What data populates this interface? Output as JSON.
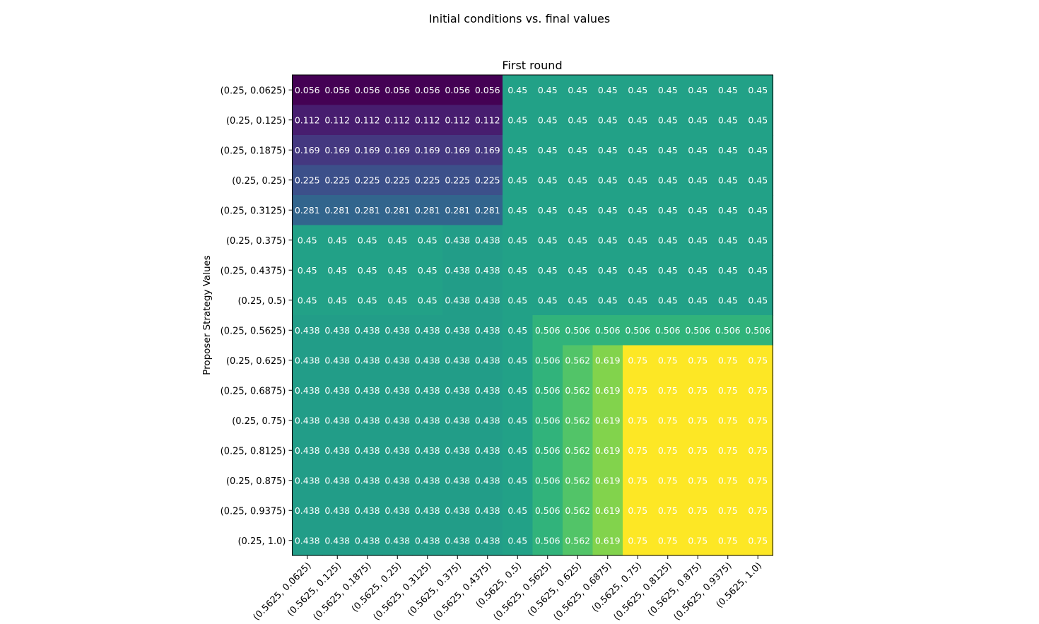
{
  "figure": {
    "suptitle": "Initial conditions vs. final values"
  },
  "chart_data": {
    "type": "heatmap",
    "title": "First round",
    "ylabel": "Proposer Strategy Values",
    "xlabel": "",
    "colormap": "viridis",
    "vmin": 0.056,
    "vmax": 0.75,
    "annotation_color": "#ffffff",
    "y_categories": [
      "(0.25, 0.0625)",
      "(0.25, 0.125)",
      "(0.25, 0.1875)",
      "(0.25, 0.25)",
      "(0.25, 0.3125)",
      "(0.25, 0.375)",
      "(0.25, 0.4375)",
      "(0.25, 0.5)",
      "(0.25, 0.5625)",
      "(0.25, 0.625)",
      "(0.25, 0.6875)",
      "(0.25, 0.75)",
      "(0.25, 0.8125)",
      "(0.25, 0.875)",
      "(0.25, 0.9375)",
      "(0.25, 1.0)"
    ],
    "x_categories": [
      "(0.5625, 0.0625)",
      "(0.5625, 0.125)",
      "(0.5625, 0.1875)",
      "(0.5625, 0.25)",
      "(0.5625, 0.3125)",
      "(0.5625, 0.375)",
      "(0.5625, 0.4375)",
      "(0.5625, 0.5)",
      "(0.5625, 0.5625)",
      "(0.5625, 0.625)",
      "(0.5625, 0.6875)",
      "(0.5625, 0.75)",
      "(0.5625, 0.8125)",
      "(0.5625, 0.875)",
      "(0.5625, 0.9375)",
      "(0.5625, 1.0)"
    ],
    "values": [
      [
        "0.056",
        "0.056",
        "0.056",
        "0.056",
        "0.056",
        "0.056",
        "0.056",
        "0.45",
        "0.45",
        "0.45",
        "0.45",
        "0.45",
        "0.45",
        "0.45",
        "0.45",
        "0.45"
      ],
      [
        "0.112",
        "0.112",
        "0.112",
        "0.112",
        "0.112",
        "0.112",
        "0.112",
        "0.45",
        "0.45",
        "0.45",
        "0.45",
        "0.45",
        "0.45",
        "0.45",
        "0.45",
        "0.45"
      ],
      [
        "0.169",
        "0.169",
        "0.169",
        "0.169",
        "0.169",
        "0.169",
        "0.169",
        "0.45",
        "0.45",
        "0.45",
        "0.45",
        "0.45",
        "0.45",
        "0.45",
        "0.45",
        "0.45"
      ],
      [
        "0.225",
        "0.225",
        "0.225",
        "0.225",
        "0.225",
        "0.225",
        "0.225",
        "0.45",
        "0.45",
        "0.45",
        "0.45",
        "0.45",
        "0.45",
        "0.45",
        "0.45",
        "0.45"
      ],
      [
        "0.281",
        "0.281",
        "0.281",
        "0.281",
        "0.281",
        "0.281",
        "0.281",
        "0.45",
        "0.45",
        "0.45",
        "0.45",
        "0.45",
        "0.45",
        "0.45",
        "0.45",
        "0.45"
      ],
      [
        "0.45",
        "0.45",
        "0.45",
        "0.45",
        "0.45",
        "0.438",
        "0.438",
        "0.45",
        "0.45",
        "0.45",
        "0.45",
        "0.45",
        "0.45",
        "0.45",
        "0.45",
        "0.45"
      ],
      [
        "0.45",
        "0.45",
        "0.45",
        "0.45",
        "0.45",
        "0.438",
        "0.438",
        "0.45",
        "0.45",
        "0.45",
        "0.45",
        "0.45",
        "0.45",
        "0.45",
        "0.45",
        "0.45"
      ],
      [
        "0.45",
        "0.45",
        "0.45",
        "0.45",
        "0.45",
        "0.438",
        "0.438",
        "0.45",
        "0.45",
        "0.45",
        "0.45",
        "0.45",
        "0.45",
        "0.45",
        "0.45",
        "0.45"
      ],
      [
        "0.438",
        "0.438",
        "0.438",
        "0.438",
        "0.438",
        "0.438",
        "0.438",
        "0.45",
        "0.506",
        "0.506",
        "0.506",
        "0.506",
        "0.506",
        "0.506",
        "0.506",
        "0.506"
      ],
      [
        "0.438",
        "0.438",
        "0.438",
        "0.438",
        "0.438",
        "0.438",
        "0.438",
        "0.45",
        "0.506",
        "0.562",
        "0.619",
        "0.75",
        "0.75",
        "0.75",
        "0.75",
        "0.75"
      ],
      [
        "0.438",
        "0.438",
        "0.438",
        "0.438",
        "0.438",
        "0.438",
        "0.438",
        "0.45",
        "0.506",
        "0.562",
        "0.619",
        "0.75",
        "0.75",
        "0.75",
        "0.75",
        "0.75"
      ],
      [
        "0.438",
        "0.438",
        "0.438",
        "0.438",
        "0.438",
        "0.438",
        "0.438",
        "0.45",
        "0.506",
        "0.562",
        "0.619",
        "0.75",
        "0.75",
        "0.75",
        "0.75",
        "0.75"
      ],
      [
        "0.438",
        "0.438",
        "0.438",
        "0.438",
        "0.438",
        "0.438",
        "0.438",
        "0.45",
        "0.506",
        "0.562",
        "0.619",
        "0.75",
        "0.75",
        "0.75",
        "0.75",
        "0.75"
      ],
      [
        "0.438",
        "0.438",
        "0.438",
        "0.438",
        "0.438",
        "0.438",
        "0.438",
        "0.45",
        "0.506",
        "0.562",
        "0.619",
        "0.75",
        "0.75",
        "0.75",
        "0.75",
        "0.75"
      ],
      [
        "0.438",
        "0.438",
        "0.438",
        "0.438",
        "0.438",
        "0.438",
        "0.438",
        "0.45",
        "0.506",
        "0.562",
        "0.619",
        "0.75",
        "0.75",
        "0.75",
        "0.75",
        "0.75"
      ],
      [
        "0.438",
        "0.438",
        "0.438",
        "0.438",
        "0.438",
        "0.438",
        "0.438",
        "0.45",
        "0.506",
        "0.562",
        "0.619",
        "0.75",
        "0.75",
        "0.75",
        "0.75",
        "0.75"
      ]
    ]
  }
}
